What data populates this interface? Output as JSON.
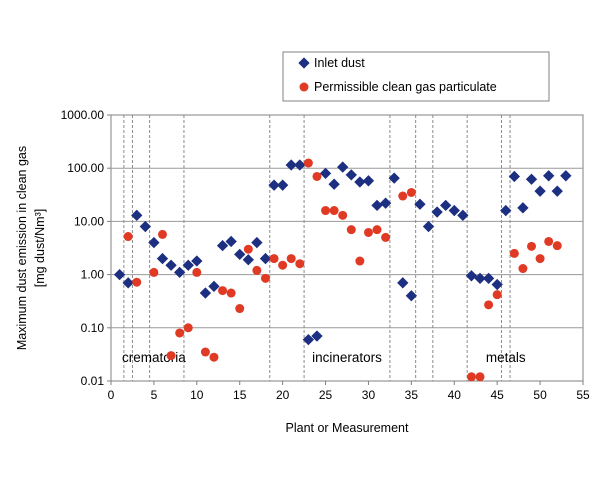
{
  "chart_data": {
    "type": "scatter",
    "title": "",
    "xlabel": "Plant or Measurement",
    "ylabel_line1": "Maximum dust emission in clean gas",
    "ylabel_line2": "[mg dust/Nm³]",
    "xlim": [
      0,
      55
    ],
    "ylim": [
      0.01,
      1000
    ],
    "yscale": "log",
    "x_ticks": [
      0,
      5,
      10,
      15,
      20,
      25,
      30,
      35,
      40,
      45,
      50,
      55
    ],
    "x_tick_labels": [
      "0",
      "5",
      "10",
      "15",
      "20",
      "25",
      "30",
      "35",
      "40",
      "45",
      "50",
      "55"
    ],
    "y_ticks": [
      0.01,
      0.1,
      1,
      10,
      100,
      1000
    ],
    "y_tick_labels": [
      "0.01",
      "0.10",
      "1.00",
      "10.00",
      "100.00",
      "1000.00"
    ],
    "grid": "horizontal major lines",
    "separators": [
      1.5,
      2.5,
      4.5,
      8.5,
      18.5,
      22.5,
      32.5,
      35.5,
      37.5,
      41.5,
      45.5,
      46.5
    ],
    "region_labels": [
      {
        "text": "crematoria",
        "x": 5,
        "y": 0.028
      },
      {
        "text": "incinerators",
        "x": 27.5,
        "y": 0.028
      },
      {
        "text": "metals",
        "x": 46,
        "y": 0.028
      }
    ],
    "legend_position": "top-right",
    "series": [
      {
        "name": "Inlet dust",
        "marker": "diamond",
        "color": "#1c2f80",
        "x": [
          1,
          2,
          3,
          4,
          5,
          6,
          7,
          8,
          9,
          10,
          11,
          12,
          13,
          14,
          15,
          16,
          17,
          18,
          19,
          20,
          21,
          22,
          23,
          24,
          25,
          26,
          27,
          28,
          29,
          30,
          31,
          32,
          33,
          34,
          35,
          36,
          37,
          38,
          39,
          40,
          41,
          42,
          43,
          44,
          45,
          46,
          47,
          48,
          49,
          50,
          51,
          52,
          53
        ],
        "y": [
          1.0,
          0.7,
          13.0,
          8.0,
          4.0,
          2.0,
          1.5,
          1.1,
          1.5,
          1.8,
          0.45,
          0.6,
          3.5,
          4.2,
          2.4,
          1.9,
          4.0,
          2.0,
          48,
          48,
          115,
          115,
          0.06,
          0.07,
          80,
          50,
          105,
          75,
          55,
          58,
          20,
          22,
          65,
          0.7,
          0.4,
          21,
          8.0,
          15,
          20,
          16,
          13,
          0.95,
          0.85,
          0.85,
          0.65,
          16,
          70,
          18,
          62,
          37,
          72,
          37,
          72
        ]
      },
      {
        "name": "Permissible clean gas particulate",
        "marker": "circle",
        "color": "#e03a25",
        "x": [
          2,
          3,
          5,
          6,
          7,
          8,
          9,
          10,
          11,
          12,
          13,
          14,
          15,
          16,
          17,
          18,
          19,
          20,
          21,
          22,
          23,
          24,
          25,
          26,
          27,
          28,
          29,
          30,
          31,
          32,
          34,
          35,
          42,
          43,
          44,
          45,
          47,
          48,
          49,
          50,
          51,
          52
        ],
        "y": [
          5.2,
          0.72,
          1.1,
          5.7,
          0.03,
          0.08,
          0.1,
          1.1,
          0.035,
          0.028,
          0.5,
          0.45,
          0.23,
          3.0,
          1.2,
          0.85,
          2.0,
          1.5,
          2.0,
          1.6,
          125,
          70,
          16,
          16,
          13,
          7.0,
          1.8,
          6.2,
          7.0,
          5.0,
          30,
          35,
          0.012,
          0.012,
          0.27,
          0.42,
          2.5,
          1.3,
          3.4,
          2.0,
          4.2,
          3.5
        ]
      }
    ]
  }
}
